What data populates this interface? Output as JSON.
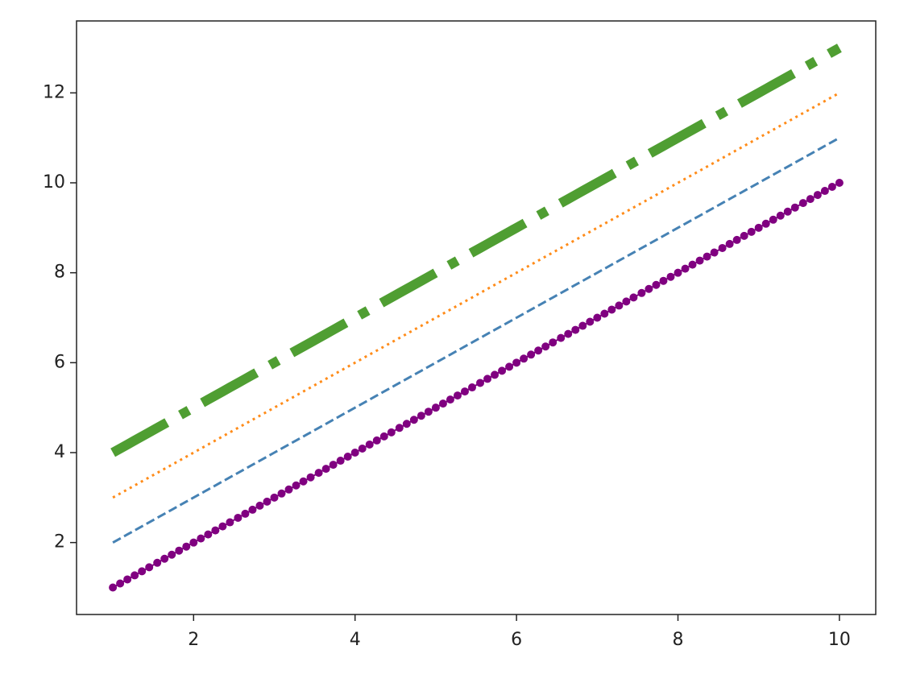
{
  "chart_data": {
    "type": "line",
    "x": [
      1,
      1.09,
      1.18,
      1.27,
      1.36,
      1.45,
      1.55,
      1.64,
      1.73,
      1.82,
      1.91,
      2,
      2.09,
      2.18,
      2.27,
      2.36,
      2.45,
      2.55,
      2.64,
      2.73,
      2.82,
      2.91,
      3,
      3.09,
      3.18,
      3.27,
      3.36,
      3.45,
      3.55,
      3.64,
      3.73,
      3.82,
      3.91,
      4,
      4.09,
      4.18,
      4.27,
      4.36,
      4.45,
      4.55,
      4.64,
      4.73,
      4.82,
      4.91,
      5,
      5.09,
      5.18,
      5.27,
      5.36,
      5.45,
      5.55,
      5.64,
      5.73,
      5.82,
      5.91,
      6,
      6.09,
      6.18,
      6.27,
      6.36,
      6.45,
      6.55,
      6.64,
      6.73,
      6.82,
      6.91,
      7,
      7.09,
      7.18,
      7.27,
      7.36,
      7.45,
      7.55,
      7.64,
      7.73,
      7.82,
      7.91,
      8,
      8.09,
      8.18,
      8.27,
      8.36,
      8.45,
      8.55,
      8.64,
      8.73,
      8.82,
      8.91,
      9,
      9.09,
      9.18,
      9.27,
      9.36,
      9.45,
      9.55,
      9.64,
      9.73,
      9.82,
      9.91,
      10
    ],
    "series": [
      {
        "color": "#800080",
        "linestyle": "solid",
        "linewidth": 2,
        "marker": "circle",
        "values": [
          1,
          1.09,
          1.18,
          1.27,
          1.36,
          1.45,
          1.55,
          1.64,
          1.73,
          1.82,
          1.91,
          2,
          2.09,
          2.18,
          2.27,
          2.36,
          2.45,
          2.55,
          2.64,
          2.73,
          2.82,
          2.91,
          3,
          3.09,
          3.18,
          3.27,
          3.36,
          3.45,
          3.55,
          3.64,
          3.73,
          3.82,
          3.91,
          4,
          4.09,
          4.18,
          4.27,
          4.36,
          4.45,
          4.55,
          4.64,
          4.73,
          4.82,
          4.91,
          5,
          5.09,
          5.18,
          5.27,
          5.36,
          5.45,
          5.55,
          5.64,
          5.73,
          5.82,
          5.91,
          6,
          6.09,
          6.18,
          6.27,
          6.36,
          6.45,
          6.55,
          6.64,
          6.73,
          6.82,
          6.91,
          7,
          7.09,
          7.18,
          7.27,
          7.36,
          7.45,
          7.55,
          7.64,
          7.73,
          7.82,
          7.91,
          8,
          8.09,
          8.18,
          8.27,
          8.36,
          8.45,
          8.55,
          8.64,
          8.73,
          8.82,
          8.91,
          9,
          9.09,
          9.18,
          9.27,
          9.36,
          9.45,
          9.55,
          9.64,
          9.73,
          9.82,
          9.91,
          10
        ]
      },
      {
        "color": "#4682b4",
        "linestyle": "dashed",
        "linewidth": 3,
        "values": [
          2,
          2.09,
          2.18,
          2.27,
          2.36,
          2.45,
          2.55,
          2.64,
          2.73,
          2.82,
          2.91,
          3,
          3.09,
          3.18,
          3.27,
          3.36,
          3.45,
          3.55,
          3.64,
          3.73,
          3.82,
          3.91,
          4,
          4.09,
          4.18,
          4.27,
          4.36,
          4.45,
          4.55,
          4.64,
          4.73,
          4.82,
          4.91,
          5,
          5.09,
          5.18,
          5.27,
          5.36,
          5.45,
          5.55,
          5.64,
          5.73,
          5.82,
          5.91,
          6,
          6.09,
          6.18,
          6.27,
          6.36,
          6.45,
          6.55,
          6.64,
          6.73,
          6.82,
          6.91,
          7,
          7.09,
          7.18,
          7.27,
          7.36,
          7.45,
          7.55,
          7.64,
          7.73,
          7.82,
          7.91,
          8,
          8.09,
          8.18,
          8.27,
          8.36,
          8.45,
          8.55,
          8.64,
          8.73,
          8.82,
          8.91,
          9,
          9.09,
          9.18,
          9.27,
          9.36,
          9.45,
          9.55,
          9.64,
          9.73,
          9.82,
          9.91,
          10,
          10.09,
          10.18,
          10.27,
          10.36,
          10.45,
          10.55,
          10.64,
          10.73,
          10.82,
          10.91,
          11
        ]
      },
      {
        "color": "#ff8c1a",
        "linestyle": "dotted",
        "linewidth": 3,
        "values": [
          3,
          3.09,
          3.18,
          3.27,
          3.36,
          3.45,
          3.55,
          3.64,
          3.73,
          3.82,
          3.91,
          4,
          4.09,
          4.18,
          4.27,
          4.36,
          4.45,
          4.55,
          4.64,
          4.73,
          4.82,
          4.91,
          5,
          5.09,
          5.18,
          5.27,
          5.36,
          5.45,
          5.55,
          5.64,
          5.73,
          5.82,
          5.91,
          6,
          6.09,
          6.18,
          6.27,
          6.36,
          6.45,
          6.55,
          6.64,
          6.73,
          6.82,
          6.91,
          7,
          7.09,
          7.18,
          7.27,
          7.36,
          7.45,
          7.55,
          7.64,
          7.73,
          7.82,
          7.91,
          8,
          8.09,
          8.18,
          8.27,
          8.36,
          8.45,
          8.55,
          8.64,
          8.73,
          8.82,
          8.91,
          9,
          9.09,
          9.18,
          9.27,
          9.36,
          9.45,
          9.55,
          9.64,
          9.73,
          9.82,
          9.91,
          10,
          10.09,
          10.18,
          10.27,
          10.36,
          10.45,
          10.55,
          10.64,
          10.73,
          10.82,
          10.91,
          11,
          11.09,
          11.18,
          11.27,
          11.36,
          11.45,
          11.55,
          11.64,
          11.73,
          11.82,
          11.91,
          12
        ]
      },
      {
        "color": "#4f9e32",
        "linestyle": "dashdot",
        "linewidth": 12,
        "values": [
          4,
          4.09,
          4.18,
          4.27,
          4.36,
          4.45,
          4.55,
          4.64,
          4.73,
          4.82,
          4.91,
          5,
          5.09,
          5.18,
          5.27,
          5.36,
          5.45,
          5.55,
          5.64,
          5.73,
          5.82,
          5.91,
          6,
          6.09,
          6.18,
          6.27,
          6.36,
          6.45,
          6.55,
          6.64,
          6.73,
          6.82,
          6.91,
          7,
          7.09,
          7.18,
          7.27,
          7.36,
          7.45,
          7.55,
          7.64,
          7.73,
          7.82,
          7.91,
          8,
          8.09,
          8.18,
          8.27,
          8.36,
          8.45,
          8.55,
          8.64,
          8.73,
          8.82,
          8.91,
          9,
          9.09,
          9.18,
          9.27,
          9.36,
          9.45,
          9.55,
          9.64,
          9.73,
          9.82,
          9.91,
          10,
          10.09,
          10.18,
          10.27,
          10.36,
          10.45,
          10.55,
          10.64,
          10.73,
          10.82,
          10.91,
          11,
          11.09,
          11.18,
          11.27,
          11.36,
          11.45,
          11.55,
          11.64,
          11.73,
          11.82,
          11.91,
          12,
          12.09,
          12.18,
          12.27,
          12.36,
          12.45,
          12.55,
          12.64,
          12.73,
          12.82,
          12.91,
          13
        ]
      }
    ],
    "xlim": [
      0.55,
      10.45
    ],
    "ylim": [
      0.4,
      13.6
    ],
    "xticks": [
      2,
      4,
      6,
      8,
      10
    ],
    "yticks": [
      2,
      4,
      6,
      8,
      10,
      12
    ],
    "grid": false
  }
}
